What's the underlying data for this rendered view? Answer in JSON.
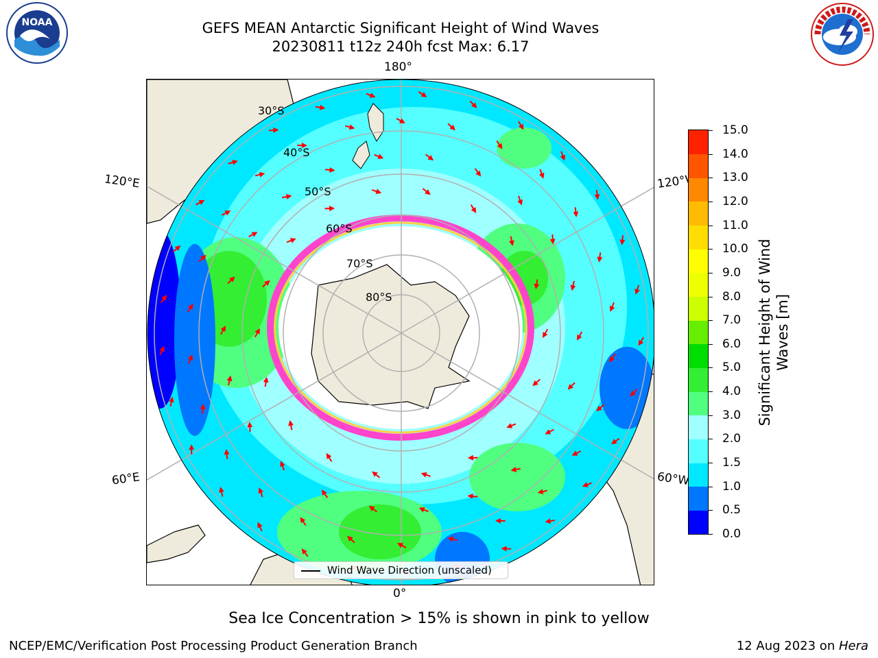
{
  "header": {
    "title_line1": "GEFS MEAN Antarctic Significant Height of Wind Waves",
    "title_line2": "20230811 t12z 240h fcst   Max: 6.17"
  },
  "logos": {
    "left": {
      "name": "noaa-logo",
      "text": "NOAA"
    },
    "right": {
      "name": "nws-logo",
      "text": "NATIONAL WEATHER SERVICE"
    }
  },
  "map": {
    "projection": "south-polar-stereographic",
    "longitude_labels": {
      "top": "180°",
      "bottom": "0°",
      "upper_left": "120°E",
      "upper_right": "120°W",
      "lower_left": "60°E",
      "lower_right": "60°W"
    },
    "latitude_labels": [
      "30°S",
      "40°S",
      "50°S",
      "60°S",
      "70°S",
      "80°S"
    ],
    "colors": {
      "land": "#efebdc",
      "ice_edge_pink": "#ff44cc",
      "ice_edge_yellow": "#ffd040",
      "arrow": "#ff0000",
      "grid": "#b0b0b0"
    },
    "legend_label": "Wind Wave Direction (unscaled)"
  },
  "colorbar": {
    "title": "Significant Height of Wind Waves [m]",
    "title_line1": "Significant Height of Wind",
    "title_line2": "Waves [m]",
    "ticks": [
      "0.0",
      "0.5",
      "1.0",
      "1.5",
      "2.0",
      "3.0",
      "4.0",
      "5.0",
      "6.0",
      "7.0",
      "8.0",
      "9.0",
      "10.0",
      "11.0",
      "12.0",
      "13.0",
      "14.0",
      "15.0"
    ],
    "colors": [
      "#0000ff",
      "#0077ff",
      "#00e8ff",
      "#55ffff",
      "#a0ffff",
      "#50ff80",
      "#33ee33",
      "#00dd00",
      "#66ee00",
      "#ccff00",
      "#eeff00",
      "#ffff00",
      "#ffdd00",
      "#ffbb00",
      "#ff8800",
      "#ff5500",
      "#ff2200"
    ]
  },
  "caption": "Sea Ice Concentration > 15% is shown in pink to yellow",
  "footer": {
    "left": "NCEP/EMC/Verification Post Processing Product Generation Branch",
    "right_date": "12 Aug 2023 on ",
    "right_host": "Hera"
  }
}
